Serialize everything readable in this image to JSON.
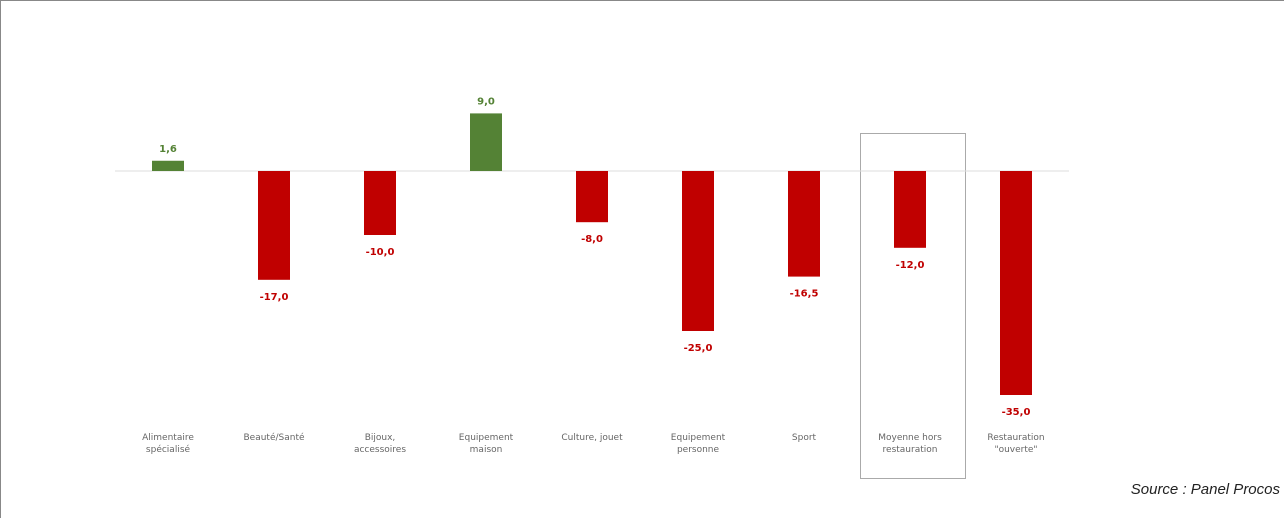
{
  "chart_data": {
    "type": "bar",
    "categories": [
      "Alimentaire\nspécialisé",
      "Beauté/Santé",
      "Bijoux,\naccessoires",
      "Equipement\nmaison",
      "Culture, jouet",
      "Equipement\npersonne",
      "Sport",
      "Moyenne hors\nrestauration",
      "Restauration\n\"ouverte\""
    ],
    "values": [
      1.6,
      -17.0,
      -10.0,
      9.0,
      -8.0,
      -25.0,
      -16.5,
      -12.0,
      -35.0
    ],
    "value_labels": [
      "1,6",
      "-17,0",
      "-10,0",
      "9,0",
      "-8,0",
      "-25,0",
      "-16,5",
      "-12,0",
      "-35,0"
    ],
    "colors": [
      "#548235",
      "#c00000",
      "#c00000",
      "#548235",
      "#c00000",
      "#c00000",
      "#c00000",
      "#c00000",
      "#c00000"
    ],
    "ylim": [
      -40,
      15
    ],
    "source": "Source : Panel Procos"
  }
}
